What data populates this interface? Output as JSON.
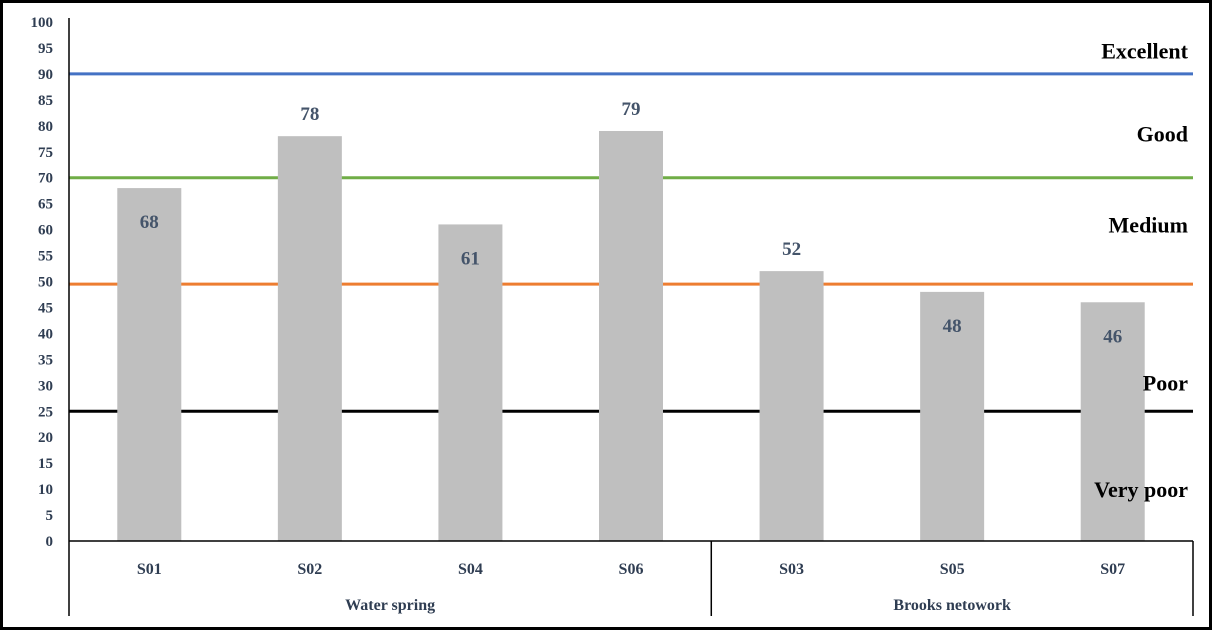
{
  "chart_data": {
    "type": "bar",
    "title": "",
    "xlabel": "",
    "ylabel": "",
    "ylim": [
      0,
      100
    ],
    "ytick_step": 5,
    "grid": false,
    "categories": [
      "S01",
      "S02",
      "S04",
      "S06",
      "S03",
      "S05",
      "S07"
    ],
    "values": [
      68,
      78,
      61,
      79,
      52,
      48,
      46
    ],
    "data_labels": [
      "68",
      "78",
      "61",
      "79",
      "52",
      "48",
      "46"
    ],
    "groups": [
      {
        "label": "Water spring",
        "categories": [
          "S01",
          "S02",
          "S04",
          "S06"
        ]
      },
      {
        "label": "Brooks netowork",
        "categories": [
          "S03",
          "S05",
          "S07"
        ]
      }
    ],
    "threshold_lines": [
      {
        "value": 90,
        "color": "#4472c4"
      },
      {
        "value": 70,
        "color": "#70ad47"
      },
      {
        "value": 49.5,
        "color": "#ed7d31"
      },
      {
        "value": 25,
        "color": "#000000"
      }
    ],
    "band_labels": [
      {
        "text": "Excellent",
        "value": 94.5
      },
      {
        "text": "Good",
        "value": 78.5
      },
      {
        "text": "Medium",
        "value": 61
      },
      {
        "text": "Poor",
        "value": 30.5
      },
      {
        "text": "Very poor",
        "value": 10
      }
    ],
    "bar_color": "#bfbfbf"
  }
}
